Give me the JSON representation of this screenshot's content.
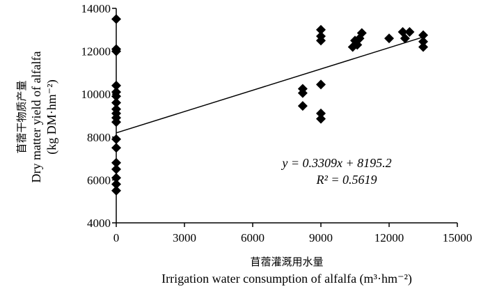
{
  "chart_data": {
    "type": "scatter",
    "x_label_cn": "苜蓿灌溉用水量",
    "x_label_en": "Irrigation water consumption of alfalfa (m³·hm⁻²)",
    "y_label_cn": "苜蓿干物质产量",
    "y_label_en_1": "Dry matter yield of alfalfa",
    "y_label_en_2": "(kg DM·hm⁻²)",
    "xlim": [
      0,
      15000
    ],
    "ylim": [
      4000,
      14000
    ],
    "x_ticks": [
      "0",
      "3000",
      "6000",
      "9000",
      "12000",
      "15000"
    ],
    "x_tick_values": [
      0,
      3000,
      6000,
      9000,
      12000,
      15000
    ],
    "y_ticks": [
      "4000",
      "6000",
      "8000",
      "10000",
      "12000",
      "14000"
    ],
    "y_tick_values": [
      4000,
      6000,
      8000,
      10000,
      12000,
      14000
    ],
    "equation": "y = 0.3309x + 8195.2",
    "r2": "R² = 0.5619",
    "trendline": {
      "slope": 0.3309,
      "intercept": 8195.2,
      "x_range": [
        0,
        13500
      ]
    },
    "points": [
      [
        0,
        13500
      ],
      [
        0,
        12100
      ],
      [
        0,
        12000
      ],
      [
        0,
        10400
      ],
      [
        0,
        10100
      ],
      [
        0,
        9900
      ],
      [
        0,
        9600
      ],
      [
        0,
        9300
      ],
      [
        0,
        9100
      ],
      [
        0,
        8900
      ],
      [
        0,
        8700
      ],
      [
        0,
        7900
      ],
      [
        0,
        7500
      ],
      [
        0,
        6800
      ],
      [
        0,
        6500
      ],
      [
        0,
        6100
      ],
      [
        0,
        5800
      ],
      [
        0,
        5500
      ],
      [
        8200,
        10250
      ],
      [
        8200,
        10050
      ],
      [
        8200,
        9450
      ],
      [
        9000,
        13000
      ],
      [
        9000,
        12700
      ],
      [
        9000,
        12500
      ],
      [
        9000,
        10450
      ],
      [
        9000,
        9100
      ],
      [
        9000,
        8850
      ],
      [
        10400,
        12200
      ],
      [
        10500,
        12500
      ],
      [
        10600,
        12300
      ],
      [
        10700,
        12600
      ],
      [
        10800,
        12850
      ],
      [
        12000,
        12600
      ],
      [
        12600,
        12900
      ],
      [
        12700,
        12600
      ],
      [
        12900,
        12900
      ],
      [
        13500,
        12750
      ],
      [
        13500,
        12450
      ],
      [
        13500,
        12200
      ]
    ]
  }
}
